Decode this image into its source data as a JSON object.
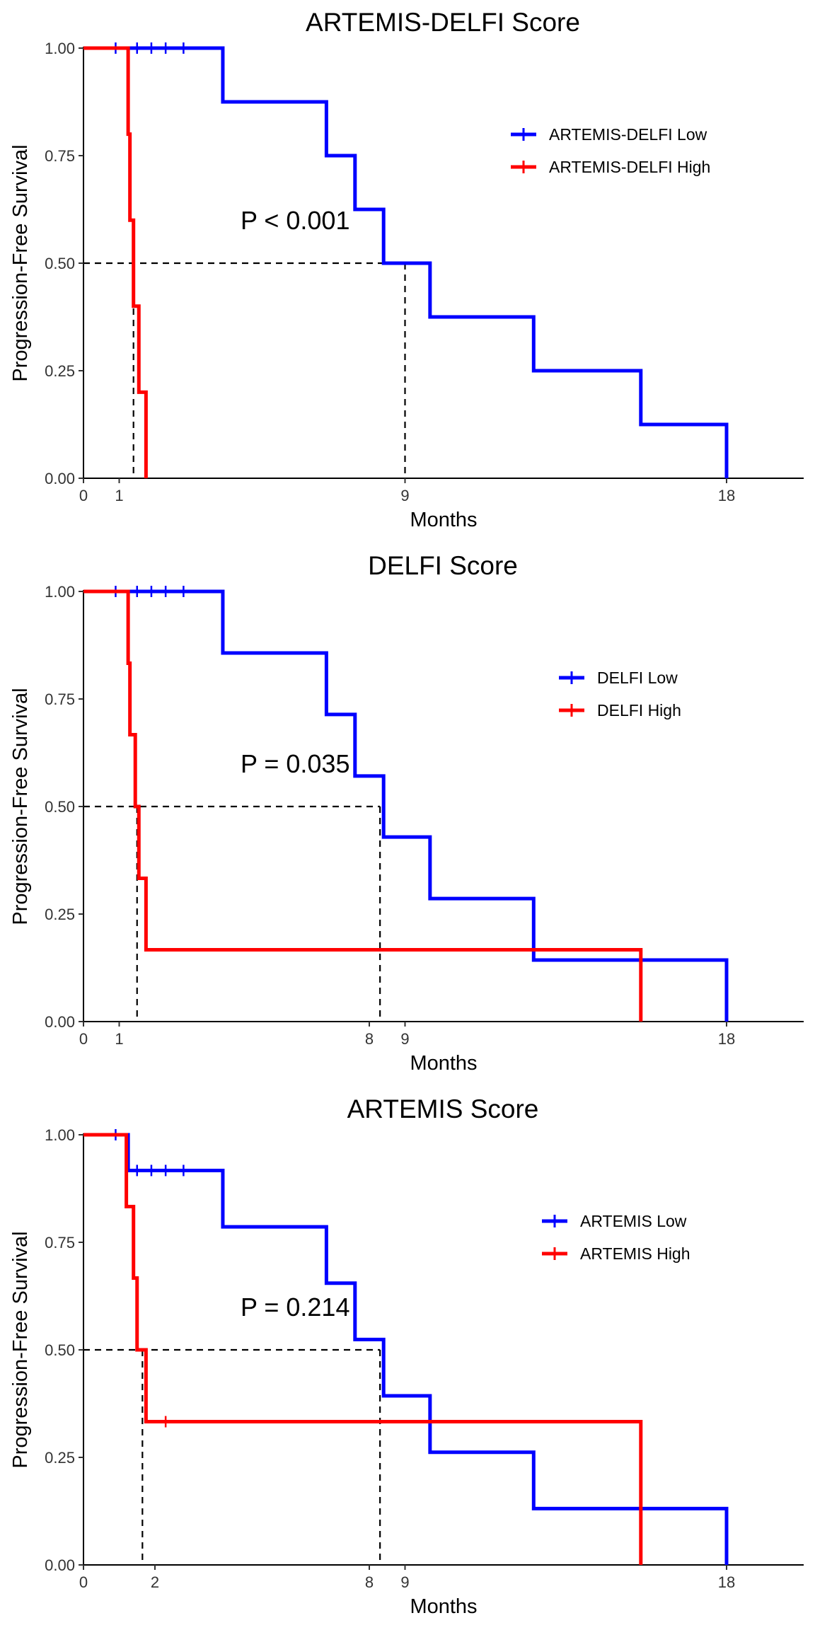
{
  "colors": {
    "low": "#0000ff",
    "high": "#ff0000",
    "axis": "#000000",
    "reference": "#000000"
  },
  "chart_data": [
    {
      "type": "line",
      "step": true,
      "title": "ARTEMIS-DELFI Score",
      "xlabel": "Months",
      "ylabel": "Progression-Free Survival",
      "xlim": [
        0,
        20.5
      ],
      "ylim": [
        0,
        1
      ],
      "x_ticks": [
        0,
        1,
        9,
        18
      ],
      "y_ticks": [
        "0.00",
        "0.25",
        "0.50",
        "0.75",
        "1.00"
      ],
      "legend_position": "top-right",
      "annotation": "P < 0.001",
      "median_lines": [
        1.4,
        9.0
      ],
      "series": [
        {
          "name": "ARTEMIS-DELFI Low",
          "color": "#0000ff",
          "steps": [
            [
              0,
              1.0
            ],
            [
              3.9,
              0.875
            ],
            [
              6.8,
              0.75
            ],
            [
              7.6,
              0.625
            ],
            [
              8.4,
              0.5
            ],
            [
              9.7,
              0.375
            ],
            [
              12.6,
              0.25
            ],
            [
              15.6,
              0.125
            ],
            [
              18.0,
              0.0
            ]
          ],
          "end": 18.0,
          "censored": [
            [
              0.9,
              1.0
            ],
            [
              1.5,
              1.0
            ],
            [
              1.9,
              1.0
            ],
            [
              2.3,
              1.0
            ],
            [
              2.8,
              1.0
            ]
          ]
        },
        {
          "name": "ARTEMIS-DELFI High",
          "color": "#ff0000",
          "steps": [
            [
              0,
              1.0
            ],
            [
              1.25,
              0.8
            ],
            [
              1.3,
              0.6
            ],
            [
              1.4,
              0.4
            ],
            [
              1.55,
              0.2
            ],
            [
              1.75,
              0.0
            ]
          ],
          "end": 1.75,
          "censored": []
        }
      ]
    },
    {
      "type": "line",
      "step": true,
      "title": "DELFI Score",
      "xlabel": "Months",
      "ylabel": "Progression-Free Survival",
      "xlim": [
        0,
        20.5
      ],
      "ylim": [
        0,
        1
      ],
      "x_ticks": [
        0,
        1,
        8,
        9,
        18
      ],
      "y_ticks": [
        "0.00",
        "0.25",
        "0.50",
        "0.75",
        "1.00"
      ],
      "legend_position": "top-right",
      "annotation": "P = 0.035",
      "median_lines": [
        1.5,
        8.3
      ],
      "series": [
        {
          "name": "DELFI Low",
          "color": "#0000ff",
          "steps": [
            [
              0,
              1.0
            ],
            [
              3.9,
              0.857
            ],
            [
              6.8,
              0.714
            ],
            [
              7.6,
              0.571
            ],
            [
              8.4,
              0.429
            ],
            [
              9.7,
              0.286
            ],
            [
              12.6,
              0.143
            ],
            [
              18.0,
              0.0
            ]
          ],
          "end": 18.0,
          "censored": [
            [
              0.9,
              1.0
            ],
            [
              1.5,
              1.0
            ],
            [
              1.9,
              1.0
            ],
            [
              2.3,
              1.0
            ],
            [
              2.8,
              1.0
            ]
          ]
        },
        {
          "name": "DELFI High",
          "color": "#ff0000",
          "steps": [
            [
              0,
              1.0
            ],
            [
              1.25,
              0.833
            ],
            [
              1.3,
              0.667
            ],
            [
              1.45,
              0.5
            ],
            [
              1.55,
              0.333
            ],
            [
              1.75,
              0.167
            ],
            [
              15.6,
              0.0
            ]
          ],
          "end": 15.6,
          "censored": []
        }
      ]
    },
    {
      "type": "line",
      "step": true,
      "title": "ARTEMIS Score",
      "xlabel": "Months",
      "ylabel": "Progression-Free Survival",
      "xlim": [
        0,
        20.5
      ],
      "ylim": [
        0,
        1
      ],
      "x_ticks": [
        0,
        2,
        8,
        9,
        18
      ],
      "y_ticks": [
        "0.00",
        "0.25",
        "0.50",
        "0.75",
        "1.00"
      ],
      "legend_position": "top-right",
      "annotation": "P = 0.214",
      "median_lines": [
        1.65,
        8.3
      ],
      "series": [
        {
          "name": "ARTEMIS Low",
          "color": "#0000ff",
          "steps": [
            [
              0,
              1.0
            ],
            [
              1.25,
              0.917
            ],
            [
              3.9,
              0.786
            ],
            [
              6.8,
              0.655
            ],
            [
              7.6,
              0.524
            ],
            [
              8.4,
              0.393
            ],
            [
              9.7,
              0.262
            ],
            [
              12.6,
              0.131
            ],
            [
              18.0,
              0.0
            ]
          ],
          "end": 18.0,
          "censored": [
            [
              0.9,
              1.0
            ],
            [
              1.5,
              0.917
            ],
            [
              1.9,
              0.917
            ],
            [
              2.3,
              0.917
            ],
            [
              2.8,
              0.917
            ]
          ]
        },
        {
          "name": "ARTEMIS High",
          "color": "#ff0000",
          "steps": [
            [
              0,
              1.0
            ],
            [
              1.2,
              0.833
            ],
            [
              1.4,
              0.667
            ],
            [
              1.5,
              0.5
            ],
            [
              1.75,
              0.333
            ],
            [
              15.6,
              0.0
            ]
          ],
          "end": 15.6,
          "censored": [
            [
              2.3,
              0.333
            ]
          ]
        }
      ]
    }
  ]
}
